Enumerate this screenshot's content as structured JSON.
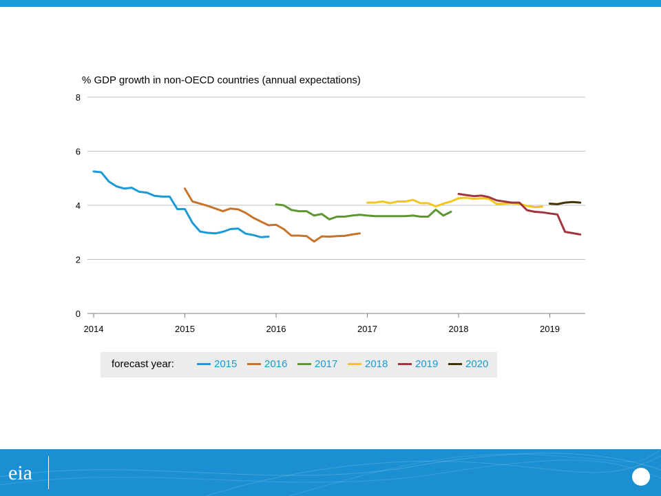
{
  "colors": {
    "top_bar": "#1a9ad6",
    "footer": "#1b8fd2",
    "text": "#000000",
    "grid": "#bfbfbf",
    "legend_bg": "#ececec",
    "legend_text": "#1a9ad6"
  },
  "logo": {
    "text": "eia"
  },
  "chart_data": {
    "type": "line",
    "title": "% GDP growth in non-OECD countries (annual expectations)",
    "xlabel": "",
    "ylabel": "",
    "ylim": [
      0,
      8
    ],
    "xlim": [
      "2014-01",
      "2019-05"
    ],
    "yticks": [
      "0",
      "2",
      "4",
      "6",
      "8"
    ],
    "xticks": [
      "2014",
      "2015",
      "2016",
      "2017",
      "2018",
      "2019"
    ],
    "grid": true,
    "legend_title": "forecast year:",
    "legend_position": "bottom",
    "series": [
      {
        "name": "2015",
        "color": "#1a9ad6",
        "x": [
          "2014-01",
          "2014-02",
          "2014-03",
          "2014-04",
          "2014-05",
          "2014-06",
          "2014-07",
          "2014-08",
          "2014-09",
          "2014-10",
          "2014-11",
          "2014-12",
          "2015-01",
          "2015-02",
          "2015-03",
          "2015-04",
          "2015-05",
          "2015-06",
          "2015-07",
          "2015-08",
          "2015-09",
          "2015-10",
          "2015-11",
          "2015-12"
        ],
        "y": [
          5.25,
          5.22,
          4.88,
          4.7,
          4.62,
          4.65,
          4.5,
          4.47,
          4.35,
          4.32,
          4.32,
          3.86,
          3.86,
          3.35,
          3.03,
          2.98,
          2.96,
          3.02,
          3.12,
          3.14,
          2.95,
          2.9,
          2.82,
          2.84
        ]
      },
      {
        "name": "2016",
        "color": "#c7742b",
        "x": [
          "2015-01",
          "2015-02",
          "2015-03",
          "2015-04",
          "2015-05",
          "2015-06",
          "2015-07",
          "2015-08",
          "2015-09",
          "2015-10",
          "2015-11",
          "2015-12",
          "2016-01",
          "2016-02",
          "2016-03",
          "2016-04",
          "2016-05",
          "2016-06",
          "2016-07",
          "2016-08",
          "2016-09",
          "2016-10",
          "2016-11",
          "2016-12"
        ],
        "y": [
          4.62,
          4.14,
          4.06,
          3.98,
          3.88,
          3.78,
          3.88,
          3.85,
          3.72,
          3.54,
          3.4,
          3.26,
          3.28,
          3.12,
          2.88,
          2.88,
          2.86,
          2.66,
          2.85,
          2.84,
          2.86,
          2.87,
          2.92,
          2.96
        ]
      },
      {
        "name": "2017",
        "color": "#5e9732",
        "x": [
          "2016-01",
          "2016-02",
          "2016-03",
          "2016-04",
          "2016-05",
          "2016-06",
          "2016-07",
          "2016-08",
          "2016-09",
          "2016-10",
          "2016-11",
          "2016-12",
          "2017-01",
          "2017-02",
          "2017-03",
          "2017-04",
          "2017-05",
          "2017-06",
          "2017-07",
          "2017-08",
          "2017-09",
          "2017-10",
          "2017-11",
          "2017-12"
        ],
        "y": [
          4.03,
          4.0,
          3.83,
          3.78,
          3.78,
          3.62,
          3.68,
          3.48,
          3.58,
          3.58,
          3.62,
          3.65,
          3.62,
          3.6,
          3.6,
          3.6,
          3.6,
          3.6,
          3.62,
          3.58,
          3.58,
          3.84,
          3.62,
          3.76
        ]
      },
      {
        "name": "2018",
        "color": "#f4c51b",
        "x": [
          "2017-01",
          "2017-02",
          "2017-03",
          "2017-04",
          "2017-05",
          "2017-06",
          "2017-07",
          "2017-08",
          "2017-09",
          "2017-10",
          "2017-11",
          "2017-12",
          "2018-01",
          "2018-02",
          "2018-03",
          "2018-04",
          "2018-05",
          "2018-06",
          "2018-07",
          "2018-08",
          "2018-09",
          "2018-10",
          "2018-11",
          "2018-12"
        ],
        "y": [
          4.1,
          4.1,
          4.14,
          4.08,
          4.14,
          4.14,
          4.2,
          4.08,
          4.08,
          3.96,
          4.06,
          4.14,
          4.26,
          4.28,
          4.24,
          4.26,
          4.24,
          4.05,
          4.06,
          4.08,
          4.05,
          3.98,
          3.93,
          3.95
        ]
      },
      {
        "name": "2019",
        "color": "#a2343f",
        "x": [
          "2018-01",
          "2018-02",
          "2018-03",
          "2018-04",
          "2018-05",
          "2018-06",
          "2018-07",
          "2018-08",
          "2018-09",
          "2018-10",
          "2018-11",
          "2018-12",
          "2019-01",
          "2019-02",
          "2019-03",
          "2019-04",
          "2019-05"
        ],
        "y": [
          4.42,
          4.38,
          4.34,
          4.36,
          4.3,
          4.18,
          4.14,
          4.1,
          4.1,
          3.82,
          3.76,
          3.74,
          3.7,
          3.66,
          3.02,
          2.97,
          2.92
        ]
      },
      {
        "name": "2020",
        "color": "#3f3300",
        "x": [
          "2019-01",
          "2019-02",
          "2019-03",
          "2019-04",
          "2019-05"
        ],
        "y": [
          4.06,
          4.04,
          4.1,
          4.12,
          4.1
        ]
      }
    ]
  }
}
